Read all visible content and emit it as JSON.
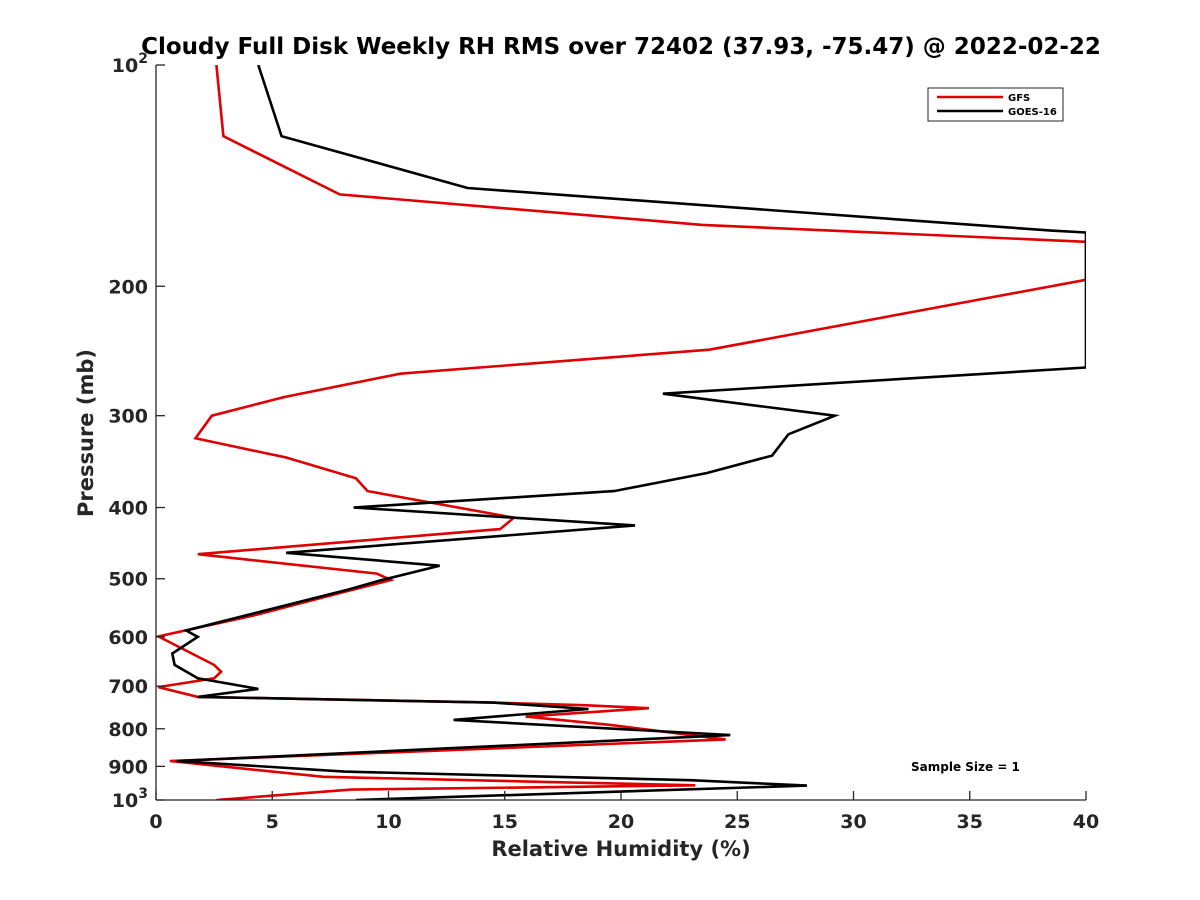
{
  "chart_data": {
    "type": "line",
    "title": "Cloudy Full Disk Weekly RH RMS over 72402 (37.93, -75.47) @ 2022-02-22",
    "xlabel": "Relative Humidity (%)",
    "ylabel": "Pressure (mb)",
    "xlim": [
      0,
      40
    ],
    "ylim": [
      100,
      1000
    ],
    "yscale": "log",
    "y_reversed": true,
    "x_ticks": [
      "0",
      "5",
      "10",
      "15",
      "20",
      "25",
      "30",
      "35",
      "40"
    ],
    "y_ticks": [
      {
        "value": 100,
        "label": "10",
        "sup": "2"
      },
      {
        "value": 200,
        "label": "200",
        "sup": ""
      },
      {
        "value": 300,
        "label": "300",
        "sup": ""
      },
      {
        "value": 400,
        "label": "400",
        "sup": ""
      },
      {
        "value": 500,
        "label": "500",
        "sup": ""
      },
      {
        "value": 600,
        "label": "600",
        "sup": ""
      },
      {
        "value": 700,
        "label": "700",
        "sup": ""
      },
      {
        "value": 800,
        "label": "800",
        "sup": ""
      },
      {
        "value": 900,
        "label": "900",
        "sup": ""
      },
      {
        "value": 1000,
        "label": "10",
        "sup": "3"
      }
    ],
    "grid": false,
    "legend_position": "top-right",
    "annotation": "Sample Size = 1",
    "series": [
      {
        "name": "GFS",
        "color": "#e00000",
        "points": [
          [
            2.6,
            100
          ],
          [
            2.9,
            125
          ],
          [
            7.9,
            150
          ],
          [
            23.5,
            165
          ],
          [
            40,
            174
          ],
          [
            40,
            196
          ],
          [
            23.8,
            244
          ],
          [
            10.5,
            263
          ],
          [
            5.5,
            283
          ],
          [
            2.4,
            300
          ],
          [
            1.7,
            322
          ],
          [
            5.6,
            342
          ],
          [
            8.6,
            365
          ],
          [
            9.1,
            380
          ],
          [
            15.4,
            413
          ],
          [
            14.8,
            428
          ],
          [
            1.8,
            463
          ],
          [
            9.5,
            492
          ],
          [
            10.1,
            502
          ],
          [
            8.1,
            521
          ],
          [
            4.3,
            560
          ],
          [
            0.1,
            599
          ],
          [
            2.5,
            655
          ],
          [
            2.8,
            669
          ],
          [
            2.5,
            683
          ],
          [
            0.1,
            702
          ],
          [
            1.8,
            724
          ],
          [
            14.5,
            737
          ],
          [
            18.4,
            743
          ],
          [
            21.2,
            750
          ],
          [
            15.9,
            770
          ],
          [
            19.5,
            790
          ],
          [
            24.5,
            827
          ],
          [
            0.6,
            885
          ],
          [
            7.2,
            930
          ],
          [
            16.7,
            945
          ],
          [
            23.2,
            955
          ],
          [
            8.4,
            968
          ],
          [
            2.6,
            1000
          ]
        ]
      },
      {
        "name": "GOES-16",
        "color": "#000000",
        "points": [
          [
            4.4,
            100
          ],
          [
            5.4,
            125
          ],
          [
            13.4,
            147
          ],
          [
            38.5,
            168
          ],
          [
            40,
            169
          ],
          [
            40,
            258
          ],
          [
            21.8,
            280
          ],
          [
            29.2,
            300
          ],
          [
            27.2,
            318
          ],
          [
            26.5,
            340
          ],
          [
            23.7,
            359
          ],
          [
            19.7,
            380
          ],
          [
            8.5,
            400
          ],
          [
            20.6,
            423
          ],
          [
            5.6,
            461
          ],
          [
            12.2,
            480
          ],
          [
            9.6,
            503
          ],
          [
            8.3,
            517
          ],
          [
            1.3,
            588
          ],
          [
            1.8,
            600
          ],
          [
            0.7,
            632
          ],
          [
            0.8,
            655
          ],
          [
            1.8,
            683
          ],
          [
            4.4,
            706
          ],
          [
            1.8,
            724
          ],
          [
            14.5,
            737
          ],
          [
            18.6,
            752
          ],
          [
            12.8,
            778
          ],
          [
            24.7,
            816
          ],
          [
            0.9,
            885
          ],
          [
            8.1,
            915
          ],
          [
            23.0,
            940
          ],
          [
            28.0,
            956
          ],
          [
            8.6,
            1000
          ]
        ]
      }
    ]
  }
}
